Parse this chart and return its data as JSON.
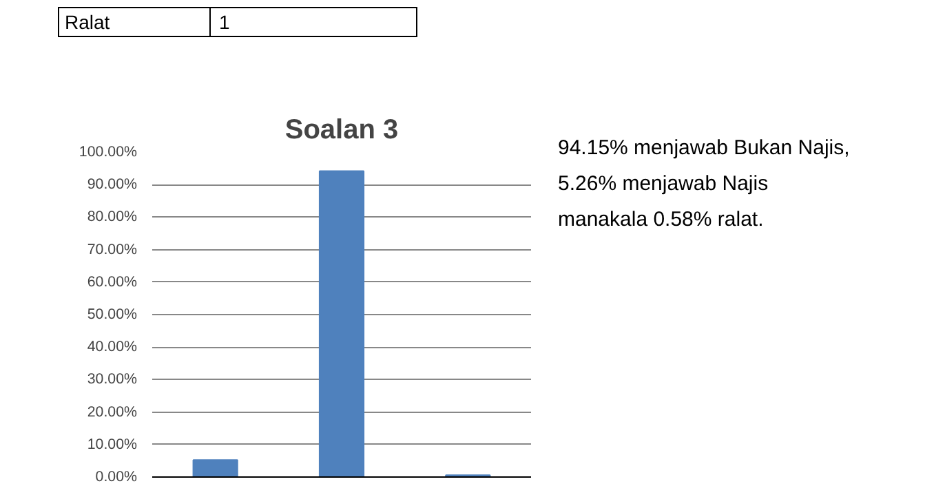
{
  "chart_data": {
    "type": "bar",
    "title": "Soalan 3",
    "categories": [
      null,
      null,
      null
    ],
    "values": [
      5.26,
      94.15,
      0.58
    ],
    "color": "#4f81bd",
    "ylim": [
      0,
      100
    ],
    "yticks": [
      {
        "value": 0,
        "label": "0.00%"
      },
      {
        "value": 10,
        "label": "10.00%"
      },
      {
        "value": 20,
        "label": "20.00%"
      },
      {
        "value": 30,
        "label": "30.00%"
      },
      {
        "value": 40,
        "label": "40.00%"
      },
      {
        "value": 50,
        "label": "50.00%"
      },
      {
        "value": 60,
        "label": "60.00%"
      },
      {
        "value": 70,
        "label": "70.00%"
      },
      {
        "value": 80,
        "label": "80.00%"
      },
      {
        "value": 90,
        "label": "90.00%"
      },
      {
        "value": 100,
        "label": "100.00%"
      }
    ],
    "grid": "y",
    "annotations": [
      "Ralat",
      "1",
      "94.15% menjawab Bukan Najis, 5.26% menjawab Najis manakala 0.58% ralat."
    ]
  }
}
